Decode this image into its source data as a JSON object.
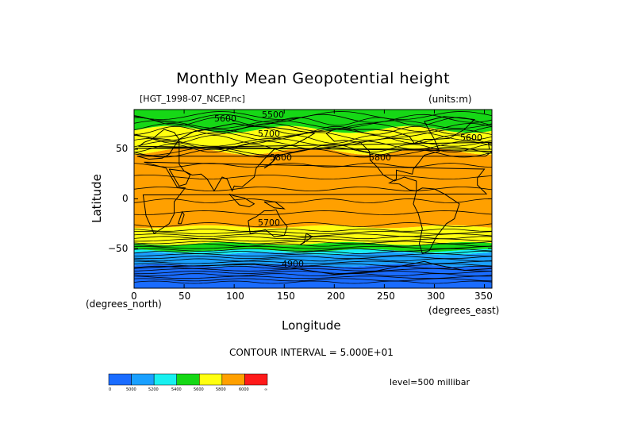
{
  "title": "Monthly Mean Geopotential height",
  "file_label": "[HGT_1998-07_NCEP.nc]",
  "units_label": "(units:m)",
  "xlabel": "Longitude",
  "ylabel": "Latitude",
  "lat_units": "(degrees_north)",
  "lon_units": "(degrees_east)",
  "contour_interval": "CONTOUR INTERVAL = 5.000E+01",
  "level": "level=500 millibar",
  "x_ticks": [
    "0",
    "50",
    "100",
    "150",
    "200",
    "250",
    "300",
    "350"
  ],
  "y_ticks": [
    "50",
    "0",
    "−50"
  ],
  "contour_labels": [
    "5500",
    "5600",
    "5700",
    "5800",
    "5800",
    "5600",
    "4900",
    "5700"
  ],
  "colorbar": {
    "colors": [
      "#1a6cff",
      "#1aa0ff",
      "#18f0f0",
      "#16d816",
      "#ffff10",
      "#ffa000",
      "#ff1a1a"
    ],
    "labels": [
      "0",
      "5000",
      "5200",
      "5400",
      "5600",
      "5800",
      "6000",
      "∞"
    ]
  },
  "chart_data": {
    "type": "heatmap",
    "title": "Monthly Mean Geopotential height",
    "xlabel": "Longitude",
    "ylabel": "Latitude",
    "xlim": [
      0,
      357.5
    ],
    "ylim": [
      -90,
      90
    ],
    "bands": [
      {
        "lat_range": [
          -90,
          -67
        ],
        "level_range": [
          0,
          5000
        ],
        "color": "#1a6cff"
      },
      {
        "lat_range": [
          -67,
          -55
        ],
        "level_range": [
          5000,
          5200
        ],
        "color": "#1aa0ff"
      },
      {
        "lat_range": [
          -55,
          -52
        ],
        "level_range": [
          5200,
          5400
        ],
        "color": "#18f0f0"
      },
      {
        "lat_range": [
          -52,
          -45
        ],
        "level_range": [
          5400,
          5600
        ],
        "color": "#16d816"
      },
      {
        "lat_range": [
          -45,
          -28
        ],
        "level_range": [
          5600,
          5800
        ],
        "color": "#ffff10"
      },
      {
        "lat_range": [
          -28,
          48
        ],
        "level_range": [
          5800,
          6000
        ],
        "color": "#ffa000"
      },
      {
        "lat_range": [
          48,
          70
        ],
        "level_range": [
          5600,
          5800
        ],
        "color": "#ffff10"
      },
      {
        "lat_range": [
          70,
          90
        ],
        "level_range": [
          5400,
          5600
        ],
        "color": "#16d816"
      }
    ]
  }
}
